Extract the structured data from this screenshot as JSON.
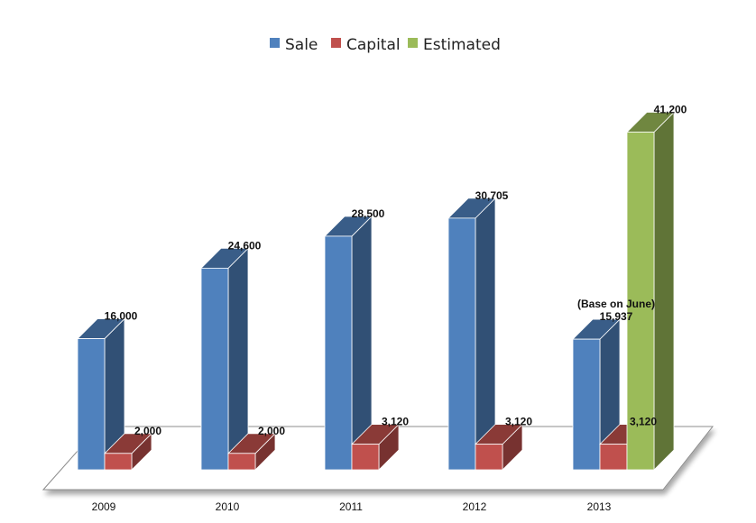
{
  "chart_data": {
    "type": "bar",
    "title": "",
    "xlabel": "",
    "ylabel": "",
    "categories": [
      "2009",
      "2010",
      "2011",
      "2012",
      "2013"
    ],
    "series": [
      {
        "name": "Sale",
        "values": [
          16000,
          24600,
          28500,
          30705,
          15937
        ],
        "labels": [
          "16,000",
          "24,600",
          "28,500",
          "30,705",
          "15,937"
        ],
        "color": "#4F81BD"
      },
      {
        "name": "Capital",
        "values": [
          2000,
          2000,
          3120,
          3120,
          3120
        ],
        "labels": [
          "2,000",
          "2,000",
          "3,120",
          "3,120",
          "3,120"
        ],
        "color": "#C0504D"
      },
      {
        "name": "Estimated",
        "values": [
          null,
          null,
          null,
          null,
          41200
        ],
        "labels": [
          "",
          "",
          "",
          "",
          "41,200"
        ],
        "color": "#9BBB59"
      }
    ],
    "annotations": [
      {
        "category": "2013",
        "series": "Sale",
        "text": "(Base on June)"
      }
    ],
    "ylim": [
      0,
      45000
    ],
    "grid": false,
    "legend": "top-center",
    "style": "3d-column"
  }
}
